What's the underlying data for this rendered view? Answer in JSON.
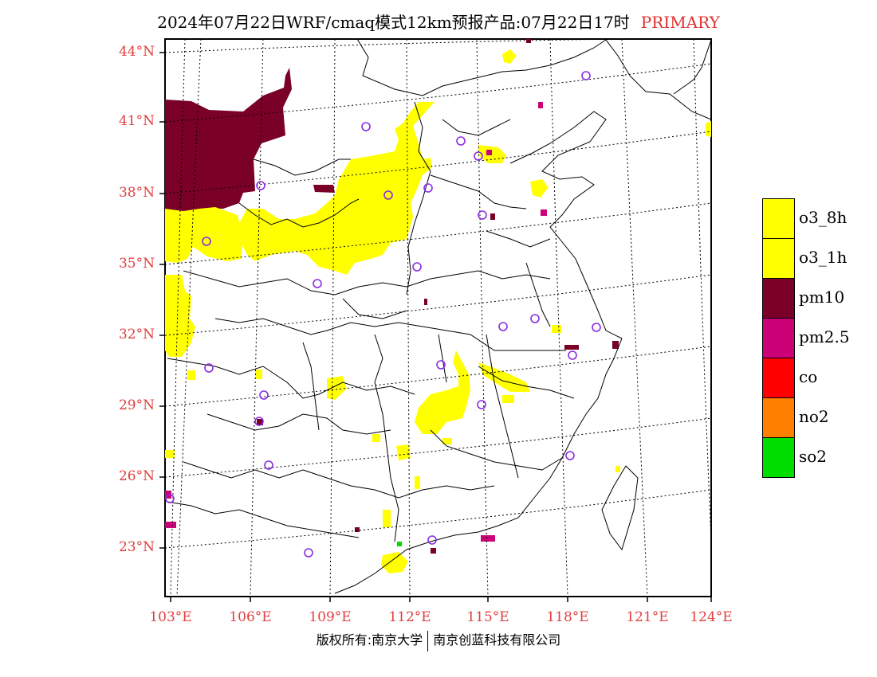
{
  "title": {
    "main": "2024年07月22日WRF/cmaq模式12km预报产品:07月22日17时",
    "tag": "PRIMARY"
  },
  "map": {
    "lat_labels": [
      "44°N",
      "41°N",
      "38°N",
      "35°N",
      "32°N",
      "29°N",
      "26°N",
      "23°N"
    ],
    "lon_labels": [
      "103°E",
      "106°E",
      "109°E",
      "112°E",
      "115°E",
      "118°E",
      "121°E",
      "124°E"
    ],
    "lat_range": [
      21,
      44.5
    ],
    "lon_range": [
      102.7,
      124
    ],
    "colors": {
      "o3_8h": "#ffff00",
      "o3_1h": "#ffff00",
      "pm10": "#7a0028",
      "pm2_5": "#cc0077",
      "co": "#ff0000",
      "no2": "#ff8000",
      "so2": "#00dd00",
      "station": "#8a2be2",
      "label": "#e04040"
    }
  },
  "legend": [
    {
      "label": "o3_8h",
      "color": "#ffff00"
    },
    {
      "label": "o3_1h",
      "color": "#ffff00"
    },
    {
      "label": "pm10",
      "color": "#7a0028"
    },
    {
      "label": "pm2.5",
      "color": "#cc0077"
    },
    {
      "label": "co",
      "color": "#ff0000"
    },
    {
      "label": "no2",
      "color": "#ff8000"
    },
    {
      "label": "so2",
      "color": "#00dd00"
    }
  ],
  "footer": {
    "left": "版权所有:南京大学",
    "right": "南京创蓝科技有限公司"
  }
}
